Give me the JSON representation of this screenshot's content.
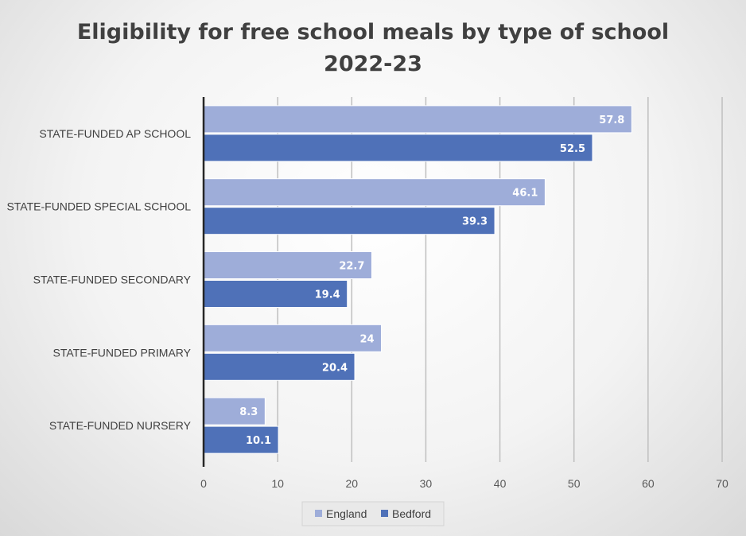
{
  "chart_data": {
    "type": "bar",
    "orientation": "horizontal",
    "title": "Eligibility for free school meals by type of school 2022-23",
    "title_lines": [
      "Eligibility for free school meals by type of school",
      "2022-23"
    ],
    "categories": [
      "STATE-FUNDED AP SCHOOL",
      "STATE-FUNDED SPECIAL SCHOOL",
      "STATE-FUNDED SECONDARY",
      "STATE-FUNDED PRIMARY",
      "STATE-FUNDED NURSERY"
    ],
    "series": [
      {
        "name": "England",
        "values": [
          57.8,
          46.1,
          22.7,
          24,
          8.3
        ],
        "color": "#9eadd9"
      },
      {
        "name": "Bedford",
        "values": [
          52.5,
          39.3,
          19.4,
          20.4,
          10.1
        ],
        "color": "#4f71b8"
      }
    ],
    "xlim": [
      0,
      70
    ],
    "xticks": [
      0,
      10,
      20,
      30,
      40,
      50,
      60,
      70
    ],
    "xlabel": "",
    "ylabel": "",
    "grid": "vertical",
    "legend": "bottom-center",
    "data_labels": true
  }
}
